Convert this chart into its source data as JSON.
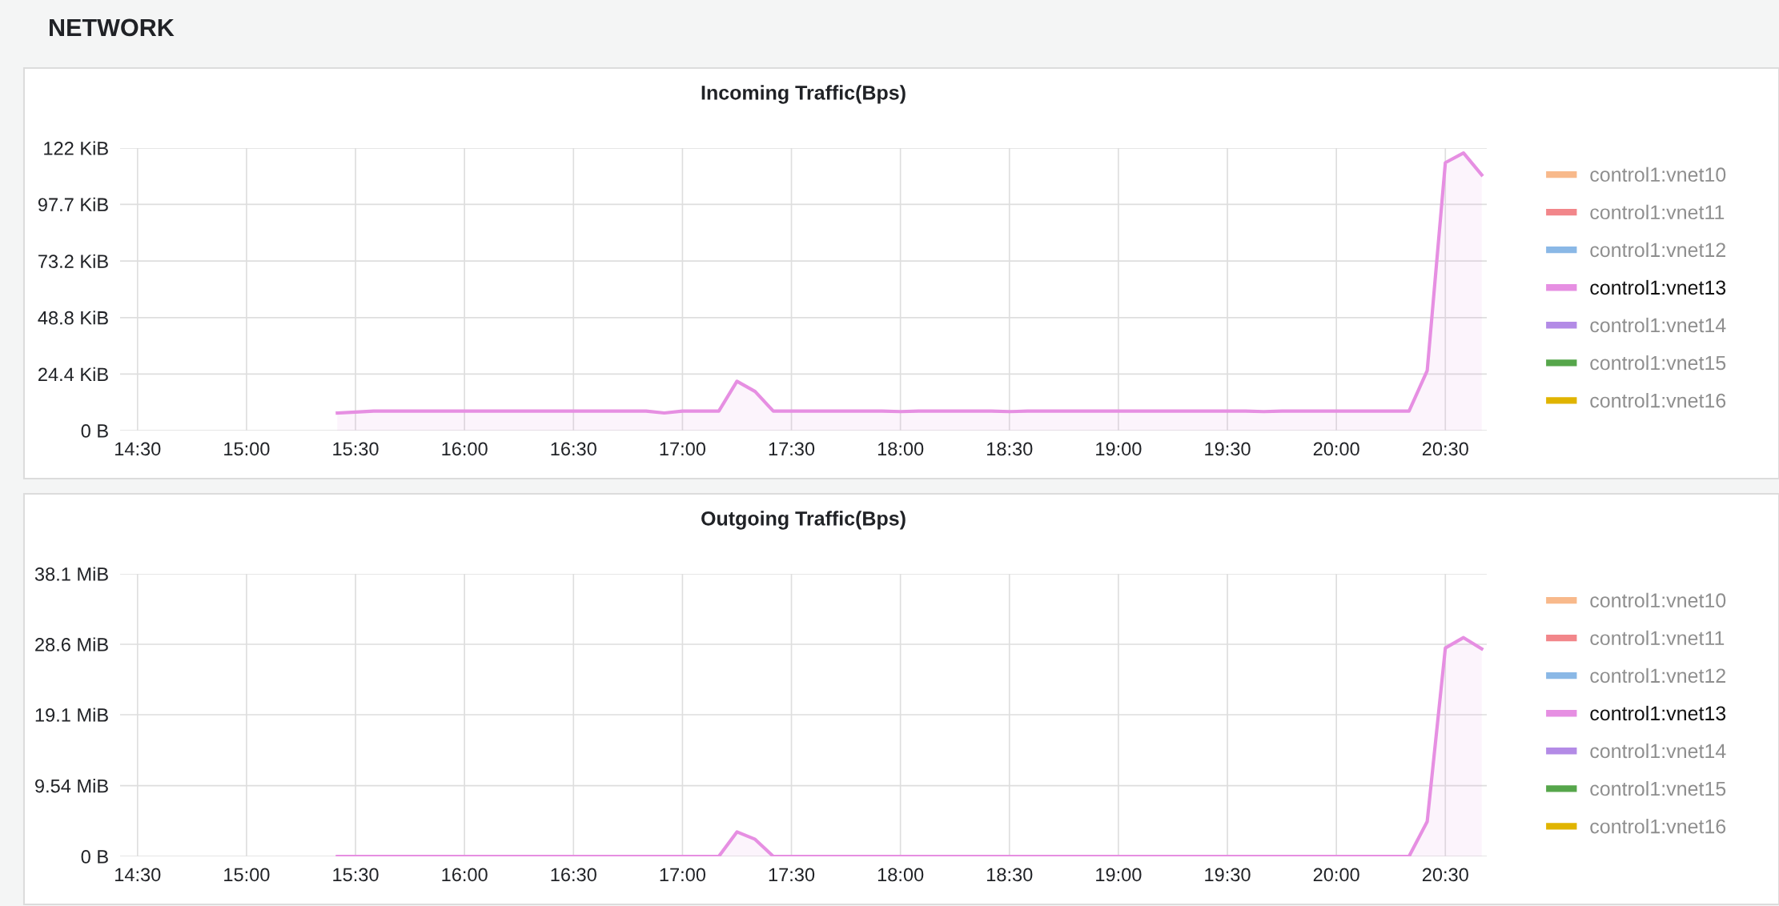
{
  "chart_data": [
    {
      "type": "area",
      "title": "Incoming Traffic(Bps)",
      "annotations": [
        "NETWORK"
      ],
      "x": [
        15.4167,
        15.5,
        15.5833,
        15.6667,
        15.75,
        15.8333,
        15.9167,
        16,
        16.0833,
        16.1667,
        16.25,
        16.3333,
        16.4167,
        16.5,
        16.5833,
        16.6667,
        16.75,
        16.8333,
        16.9167,
        17,
        17.0833,
        17.1667,
        17.25,
        17.3333,
        17.4167,
        17.5,
        17.5833,
        17.6667,
        17.75,
        17.8333,
        17.9167,
        18,
        18.0833,
        18.1667,
        18.25,
        18.3333,
        18.4167,
        18.5,
        18.5833,
        18.6667,
        18.75,
        18.8333,
        18.9167,
        19,
        19.0833,
        19.1667,
        19.25,
        19.3333,
        19.4167,
        19.5,
        19.5833,
        19.6667,
        19.75,
        19.8333,
        19.9167,
        20,
        20.0833,
        20.1667,
        20.25,
        20.3333,
        20.4167,
        20.5,
        20.5833,
        20.6667
      ],
      "series": [
        {
          "name": "control1:vnet10",
          "color": "#f8b98b",
          "values": [
            null,
            null,
            null,
            null,
            null,
            null,
            null,
            null,
            null,
            null,
            null,
            null,
            null,
            null,
            null,
            null,
            null,
            null,
            null,
            null,
            null,
            null,
            null,
            null,
            null,
            null,
            null,
            null,
            null,
            null,
            null,
            null,
            null,
            null,
            null,
            null,
            null,
            null,
            null,
            null,
            null,
            null,
            null,
            null,
            null,
            null,
            null,
            null,
            null,
            null,
            null,
            null,
            null,
            null,
            null,
            null,
            null,
            null,
            null,
            null,
            null,
            null,
            null,
            null
          ]
        },
        {
          "name": "control1:vnet11",
          "color": "#f2868a",
          "values": [
            null,
            null,
            null,
            null,
            null,
            null,
            null,
            null,
            null,
            null,
            null,
            null,
            null,
            null,
            null,
            null,
            null,
            null,
            null,
            null,
            null,
            null,
            null,
            null,
            null,
            null,
            null,
            null,
            null,
            null,
            null,
            null,
            null,
            null,
            null,
            null,
            null,
            null,
            null,
            null,
            null,
            null,
            null,
            null,
            null,
            null,
            null,
            null,
            null,
            null,
            null,
            null,
            null,
            null,
            null,
            null,
            null,
            null,
            null,
            null,
            null,
            null,
            null,
            null
          ]
        },
        {
          "name": "control1:vnet12",
          "color": "#8ab8e6",
          "values": [
            null,
            null,
            null,
            null,
            null,
            null,
            null,
            null,
            null,
            null,
            null,
            null,
            null,
            null,
            null,
            null,
            null,
            null,
            null,
            null,
            null,
            null,
            null,
            null,
            null,
            null,
            null,
            null,
            null,
            null,
            null,
            null,
            null,
            null,
            null,
            null,
            null,
            null,
            null,
            null,
            null,
            null,
            null,
            null,
            null,
            null,
            null,
            null,
            null,
            null,
            null,
            null,
            null,
            null,
            null,
            null,
            null,
            null,
            null,
            null,
            null,
            null,
            null,
            null
          ]
        },
        {
          "name": "control1:vnet13",
          "color": "#e68fe2",
          "values": [
            7.6,
            8.0,
            8.4,
            8.4,
            8.4,
            8.4,
            8.4,
            8.4,
            8.4,
            8.4,
            8.4,
            8.4,
            8.4,
            8.4,
            8.4,
            8.4,
            8.4,
            8.4,
            7.6,
            8.4,
            8.4,
            8.4,
            21.3,
            16.9,
            8.4,
            8.4,
            8.4,
            8.4,
            8.4,
            8.4,
            8.4,
            8.2,
            8.4,
            8.4,
            8.4,
            8.4,
            8.4,
            8.2,
            8.4,
            8.4,
            8.4,
            8.4,
            8.4,
            8.4,
            8.4,
            8.4,
            8.4,
            8.4,
            8.4,
            8.4,
            8.4,
            8.2,
            8.4,
            8.4,
            8.4,
            8.4,
            8.4,
            8.4,
            8.4,
            8.4,
            25.9,
            115.7,
            119.9,
            110.4
          ]
        },
        {
          "name": "control1:vnet14",
          "color": "#b38be6",
          "values": [
            null,
            null,
            null,
            null,
            null,
            null,
            null,
            null,
            null,
            null,
            null,
            null,
            null,
            null,
            null,
            null,
            null,
            null,
            null,
            null,
            null,
            null,
            null,
            null,
            null,
            null,
            null,
            null,
            null,
            null,
            null,
            null,
            null,
            null,
            null,
            null,
            null,
            null,
            null,
            null,
            null,
            null,
            null,
            null,
            null,
            null,
            null,
            null,
            null,
            null,
            null,
            null,
            null,
            null,
            null,
            null,
            null,
            null,
            null,
            null,
            null,
            null,
            null,
            null
          ]
        },
        {
          "name": "control1:vnet15",
          "color": "#56a64b",
          "values": [
            null,
            null,
            null,
            null,
            null,
            null,
            null,
            null,
            null,
            null,
            null,
            null,
            null,
            null,
            null,
            null,
            null,
            null,
            null,
            null,
            null,
            null,
            null,
            null,
            null,
            null,
            null,
            null,
            null,
            null,
            null,
            null,
            null,
            null,
            null,
            null,
            null,
            null,
            null,
            null,
            null,
            null,
            null,
            null,
            null,
            null,
            null,
            null,
            null,
            null,
            null,
            null,
            null,
            null,
            null,
            null,
            null,
            null,
            null,
            null,
            null,
            null,
            null,
            null
          ]
        },
        {
          "name": "control1:vnet16",
          "color": "#e0b400",
          "values": [
            null,
            null,
            null,
            null,
            null,
            null,
            null,
            null,
            null,
            null,
            null,
            null,
            null,
            null,
            null,
            null,
            null,
            null,
            null,
            null,
            null,
            null,
            null,
            null,
            null,
            null,
            null,
            null,
            null,
            null,
            null,
            null,
            null,
            null,
            null,
            null,
            null,
            null,
            null,
            null,
            null,
            null,
            null,
            null,
            null,
            null,
            null,
            null,
            null,
            null,
            null,
            null,
            null,
            null,
            null,
            null,
            null,
            null,
            null,
            null,
            null,
            null,
            null,
            null
          ]
        }
      ],
      "xlim": [
        14.42,
        20.69
      ],
      "xticks": [
        {
          "value": 14.5,
          "label": "14:30"
        },
        {
          "value": 15,
          "label": "15:00"
        },
        {
          "value": 15.5,
          "label": "15:30"
        },
        {
          "value": 16,
          "label": "16:00"
        },
        {
          "value": 16.5,
          "label": "16:30"
        },
        {
          "value": 17,
          "label": "17:00"
        },
        {
          "value": 17.5,
          "label": "17:30"
        },
        {
          "value": 18,
          "label": "18:00"
        },
        {
          "value": 18.5,
          "label": "18:30"
        },
        {
          "value": 19,
          "label": "19:00"
        },
        {
          "value": 19.5,
          "label": "19:30"
        },
        {
          "value": 20,
          "label": "20:00"
        },
        {
          "value": 20.5,
          "label": "20:30"
        }
      ],
      "ylim": [
        0,
        122
      ],
      "yticks": [
        {
          "value": 0,
          "label": "0 B"
        },
        {
          "value": 24.4,
          "label": "24.4 KiB"
        },
        {
          "value": 48.8,
          "label": "48.8 KiB"
        },
        {
          "value": 73.2,
          "label": "73.2 KiB"
        },
        {
          "value": 97.7,
          "label": "97.7 KiB"
        },
        {
          "value": 122,
          "label": "122 KiB"
        }
      ],
      "grid": true,
      "legend": "right",
      "marker": "none",
      "line_style": "solid"
    },
    {
      "type": "area",
      "title": "Outgoing Traffic(Bps)",
      "x": [
        15.4167,
        15.5,
        15.5833,
        15.6667,
        15.75,
        15.8333,
        15.9167,
        16,
        16.0833,
        16.1667,
        16.25,
        16.3333,
        16.4167,
        16.5,
        16.5833,
        16.6667,
        16.75,
        16.8333,
        16.9167,
        17,
        17.0833,
        17.1667,
        17.25,
        17.3333,
        17.4167,
        17.5,
        17.5833,
        17.6667,
        17.75,
        17.8333,
        17.9167,
        18,
        18.0833,
        18.1667,
        18.25,
        18.3333,
        18.4167,
        18.5,
        18.5833,
        18.6667,
        18.75,
        18.8333,
        18.9167,
        19,
        19.0833,
        19.1667,
        19.25,
        19.3333,
        19.4167,
        19.5,
        19.5833,
        19.6667,
        19.75,
        19.8333,
        19.9167,
        20,
        20.0833,
        20.1667,
        20.25,
        20.3333,
        20.4167,
        20.5,
        20.5833,
        20.6667
      ],
      "series": [
        {
          "name": "control1:vnet10",
          "color": "#f8b98b",
          "values": [
            null,
            null,
            null,
            null,
            null,
            null,
            null,
            null,
            null,
            null,
            null,
            null,
            null,
            null,
            null,
            null,
            null,
            null,
            null,
            null,
            null,
            null,
            null,
            null,
            null,
            null,
            null,
            null,
            null,
            null,
            null,
            null,
            null,
            null,
            null,
            null,
            null,
            null,
            null,
            null,
            null,
            null,
            null,
            null,
            null,
            null,
            null,
            null,
            null,
            null,
            null,
            null,
            null,
            null,
            null,
            null,
            null,
            null,
            null,
            null,
            null,
            null,
            null,
            null
          ]
        },
        {
          "name": "control1:vnet11",
          "color": "#f2868a",
          "values": [
            null,
            null,
            null,
            null,
            null,
            null,
            null,
            null,
            null,
            null,
            null,
            null,
            null,
            null,
            null,
            null,
            null,
            null,
            null,
            null,
            null,
            null,
            null,
            null,
            null,
            null,
            null,
            null,
            null,
            null,
            null,
            null,
            null,
            null,
            null,
            null,
            null,
            null,
            null,
            null,
            null,
            null,
            null,
            null,
            null,
            null,
            null,
            null,
            null,
            null,
            null,
            null,
            null,
            null,
            null,
            null,
            null,
            null,
            null,
            null,
            null,
            null,
            null,
            null
          ]
        },
        {
          "name": "control1:vnet12",
          "color": "#8ab8e6",
          "values": [
            null,
            null,
            null,
            null,
            null,
            null,
            null,
            null,
            null,
            null,
            null,
            null,
            null,
            null,
            null,
            null,
            null,
            null,
            null,
            null,
            null,
            null,
            null,
            null,
            null,
            null,
            null,
            null,
            null,
            null,
            null,
            null,
            null,
            null,
            null,
            null,
            null,
            null,
            null,
            null,
            null,
            null,
            null,
            null,
            null,
            null,
            null,
            null,
            null,
            null,
            null,
            null,
            null,
            null,
            null,
            null,
            null,
            null,
            null,
            null,
            null,
            null,
            null,
            null
          ]
        },
        {
          "name": "control1:vnet13",
          "color": "#e68fe2",
          "values": [
            0,
            0,
            0,
            0,
            0,
            0,
            0,
            0,
            0,
            0,
            0,
            0,
            0,
            0,
            0,
            0,
            0,
            0,
            0,
            0,
            0,
            0,
            3.3,
            2.3,
            0,
            0,
            0,
            0,
            0,
            0,
            0,
            0,
            0,
            0,
            0,
            0,
            0,
            0,
            0,
            0,
            0,
            0,
            0,
            0,
            0,
            0,
            0,
            0,
            0,
            0,
            0,
            0,
            0,
            0,
            0,
            0,
            0,
            0,
            0,
            0,
            4.7,
            28.1,
            29.5,
            28.0
          ]
        },
        {
          "name": "control1:vnet14",
          "color": "#b38be6",
          "values": [
            null,
            null,
            null,
            null,
            null,
            null,
            null,
            null,
            null,
            null,
            null,
            null,
            null,
            null,
            null,
            null,
            null,
            null,
            null,
            null,
            null,
            null,
            null,
            null,
            null,
            null,
            null,
            null,
            null,
            null,
            null,
            null,
            null,
            null,
            null,
            null,
            null,
            null,
            null,
            null,
            null,
            null,
            null,
            null,
            null,
            null,
            null,
            null,
            null,
            null,
            null,
            null,
            null,
            null,
            null,
            null,
            null,
            null,
            null,
            null,
            null,
            null,
            null,
            null
          ]
        },
        {
          "name": "control1:vnet15",
          "color": "#56a64b",
          "values": [
            null,
            null,
            null,
            null,
            null,
            null,
            null,
            null,
            null,
            null,
            null,
            null,
            null,
            null,
            null,
            null,
            null,
            null,
            null,
            null,
            null,
            null,
            null,
            null,
            null,
            null,
            null,
            null,
            null,
            null,
            null,
            null,
            null,
            null,
            null,
            null,
            null,
            null,
            null,
            null,
            null,
            null,
            null,
            null,
            null,
            null,
            null,
            null,
            null,
            null,
            null,
            null,
            null,
            null,
            null,
            null,
            null,
            null,
            null,
            null,
            null,
            null,
            null,
            null
          ]
        },
        {
          "name": "control1:vnet16",
          "color": "#e0b400",
          "values": [
            null,
            null,
            null,
            null,
            null,
            null,
            null,
            null,
            null,
            null,
            null,
            null,
            null,
            null,
            null,
            null,
            null,
            null,
            null,
            null,
            null,
            null,
            null,
            null,
            null,
            null,
            null,
            null,
            null,
            null,
            null,
            null,
            null,
            null,
            null,
            null,
            null,
            null,
            null,
            null,
            null,
            null,
            null,
            null,
            null,
            null,
            null,
            null,
            null,
            null,
            null,
            null,
            null,
            null,
            null,
            null,
            null,
            null,
            null,
            null,
            null,
            null,
            null,
            null
          ]
        }
      ],
      "xlim": [
        14.42,
        20.69
      ],
      "xticks": [
        {
          "value": 14.5,
          "label": "14:30"
        },
        {
          "value": 15,
          "label": "15:00"
        },
        {
          "value": 15.5,
          "label": "15:30"
        },
        {
          "value": 16,
          "label": "16:00"
        },
        {
          "value": 16.5,
          "label": "16:30"
        },
        {
          "value": 17,
          "label": "17:00"
        },
        {
          "value": 17.5,
          "label": "17:30"
        },
        {
          "value": 18,
          "label": "18:00"
        },
        {
          "value": 18.5,
          "label": "18:30"
        },
        {
          "value": 19,
          "label": "19:00"
        },
        {
          "value": 19.5,
          "label": "19:30"
        },
        {
          "value": 20,
          "label": "20:00"
        },
        {
          "value": 20.5,
          "label": "20:30"
        }
      ],
      "ylim": [
        0,
        38.1
      ],
      "yticks": [
        {
          "value": 0,
          "label": "0 B"
        },
        {
          "value": 9.54,
          "label": "9.54 MiB"
        },
        {
          "value": 19.1,
          "label": "19.1 MiB"
        },
        {
          "value": 28.6,
          "label": "28.6 MiB"
        },
        {
          "value": 38.1,
          "label": "38.1 MiB"
        }
      ],
      "grid": true,
      "legend": "right",
      "marker": "none",
      "line_style": "solid"
    }
  ]
}
